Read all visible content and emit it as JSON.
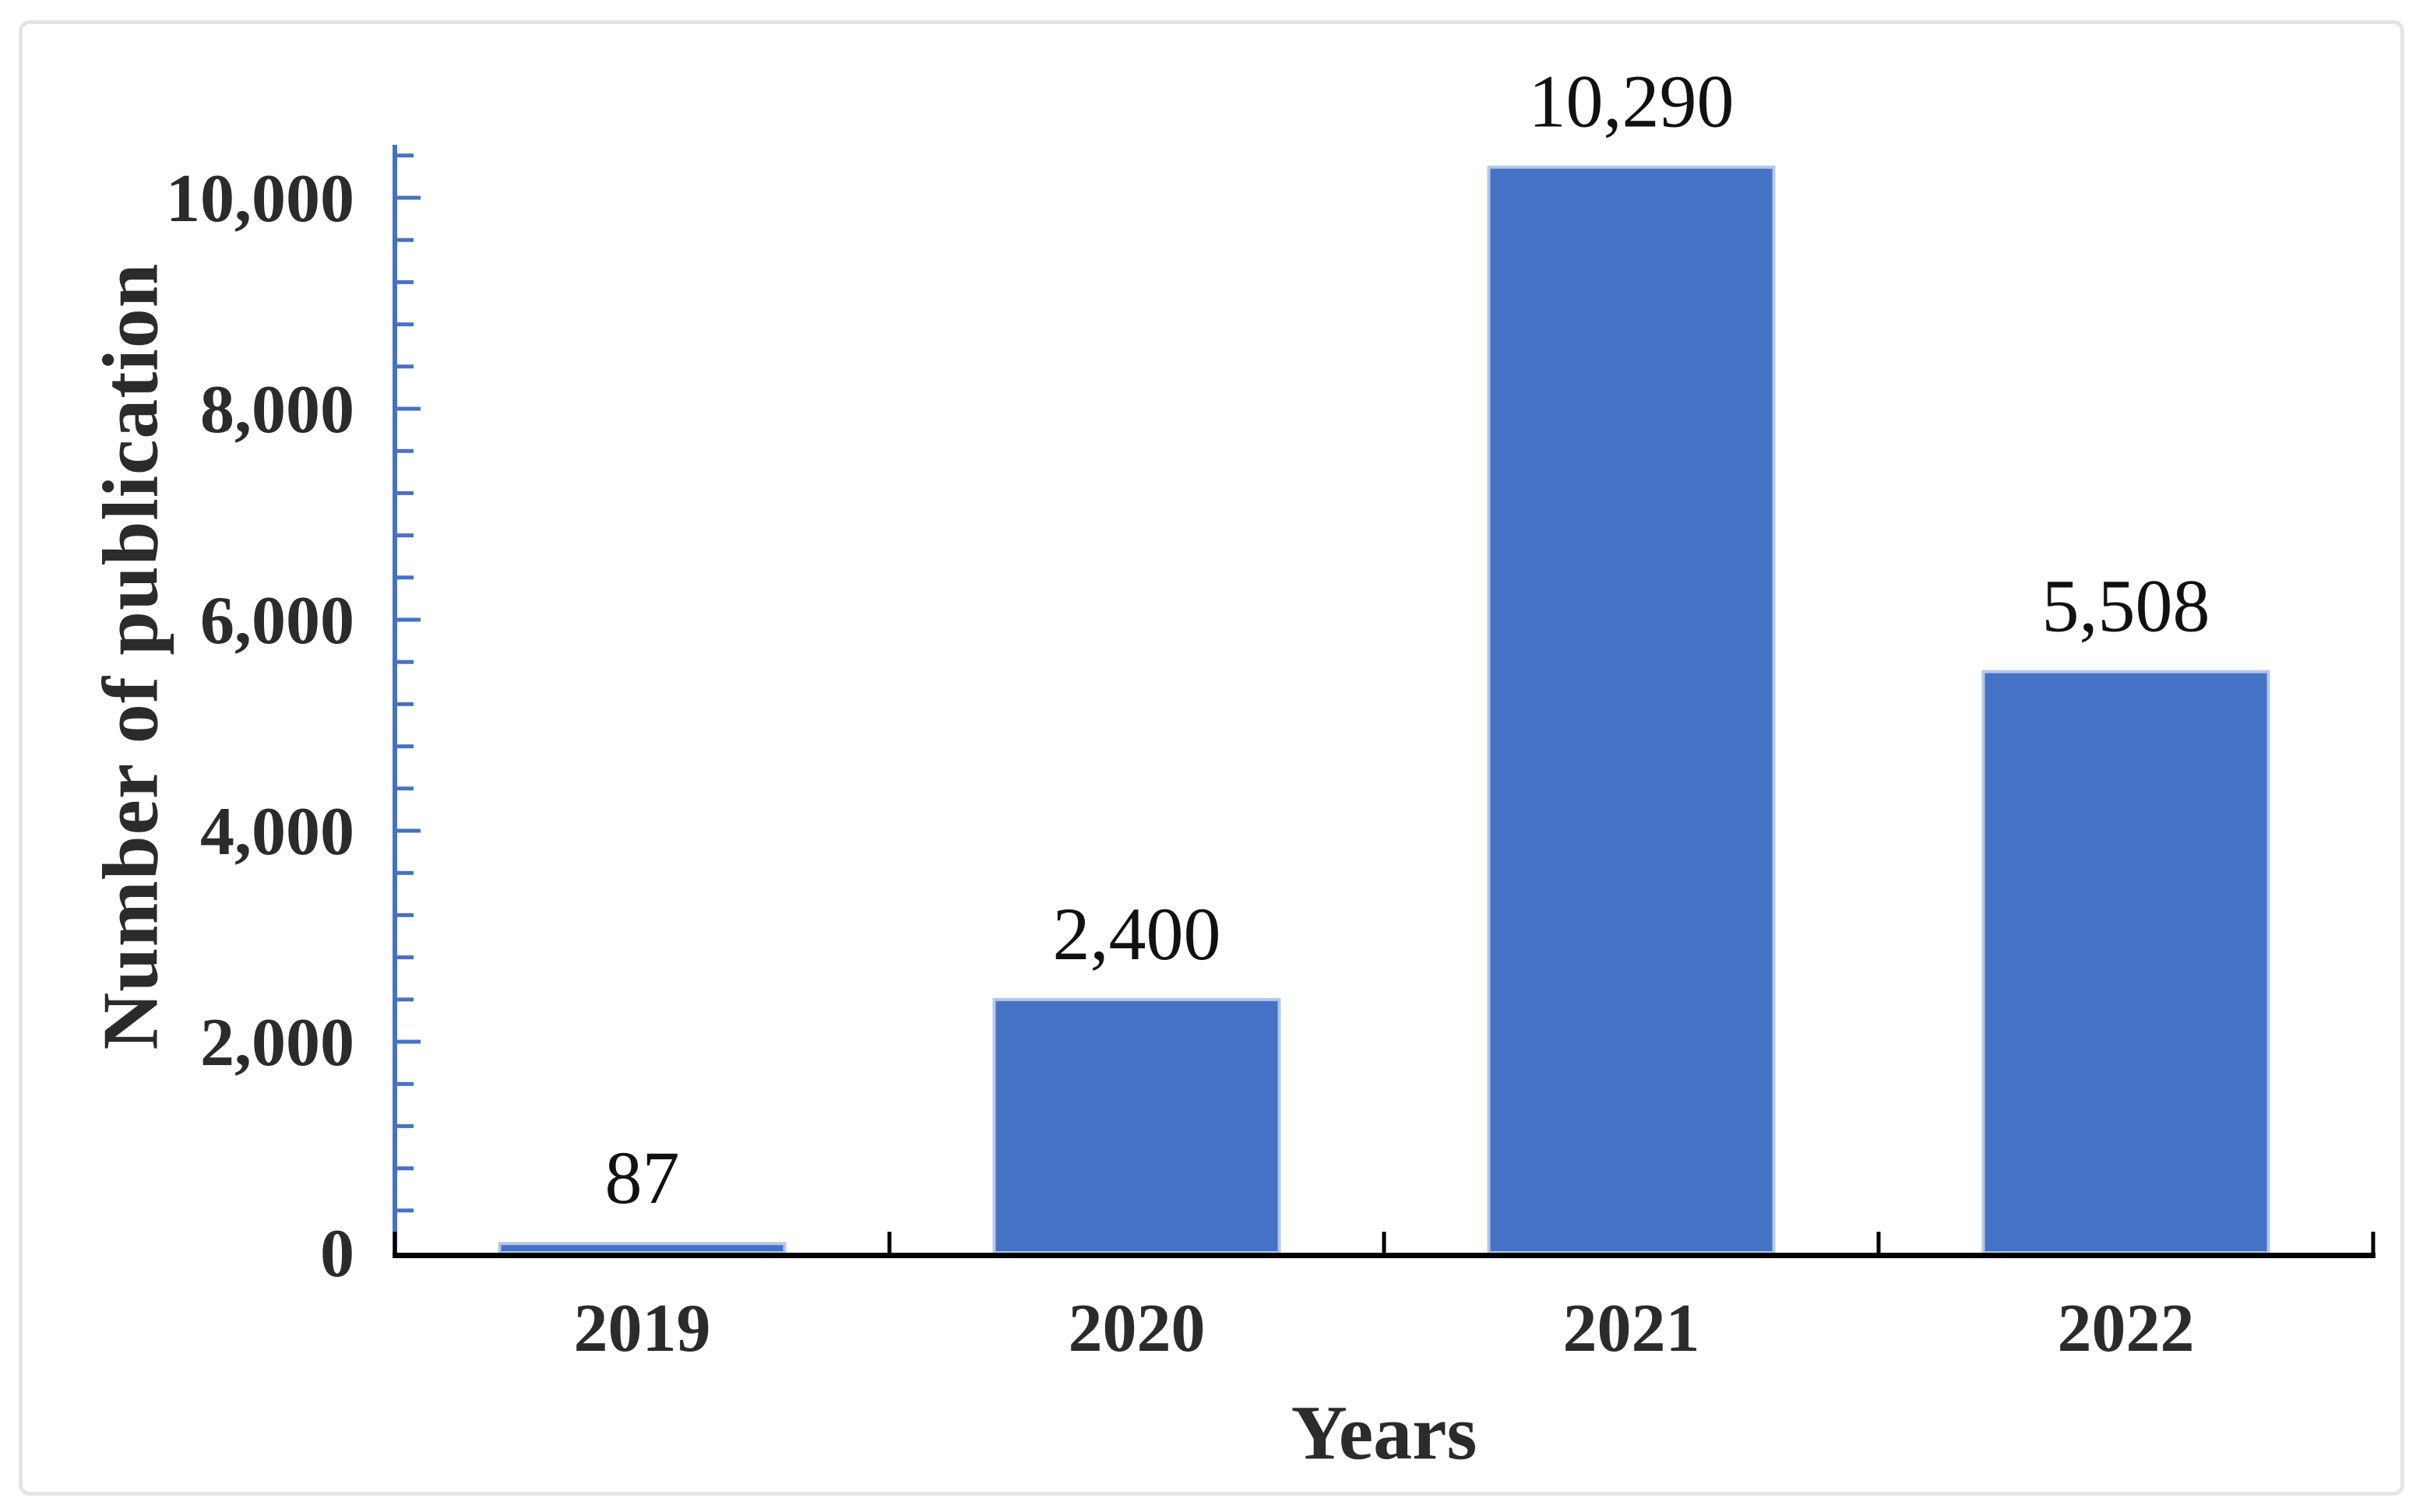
{
  "chart_data": {
    "type": "bar",
    "title": "",
    "categories": [
      "2019",
      "2020",
      "2021",
      "2022"
    ],
    "values": [
      87,
      2400,
      10290,
      5508
    ],
    "data_labels": [
      "87",
      "2,400",
      "10,290",
      "5,508"
    ],
    "xlabel": "Years",
    "ylabel": "Number of publication",
    "ylim": [
      0,
      10400
    ],
    "y_major_unit": 2000,
    "y_minor_unit": 400,
    "y_major_values": [
      0,
      2000,
      4000,
      6000,
      8000,
      10000
    ],
    "y_tick_labels": [
      "0",
      "2,000",
      "4,000",
      "6,000",
      "8,000",
      "10,000"
    ],
    "grid": "off",
    "legend": "none",
    "colors": {
      "bar_fill": "#4472C4",
      "bar_border": "#B4C7E7",
      "y_axis": "#4472C4",
      "x_axis": "#000000",
      "tick_label": "#2b2b2b",
      "data_label": "#111111",
      "frame_border": "#e4e4e4",
      "background": "#ffffff"
    }
  }
}
